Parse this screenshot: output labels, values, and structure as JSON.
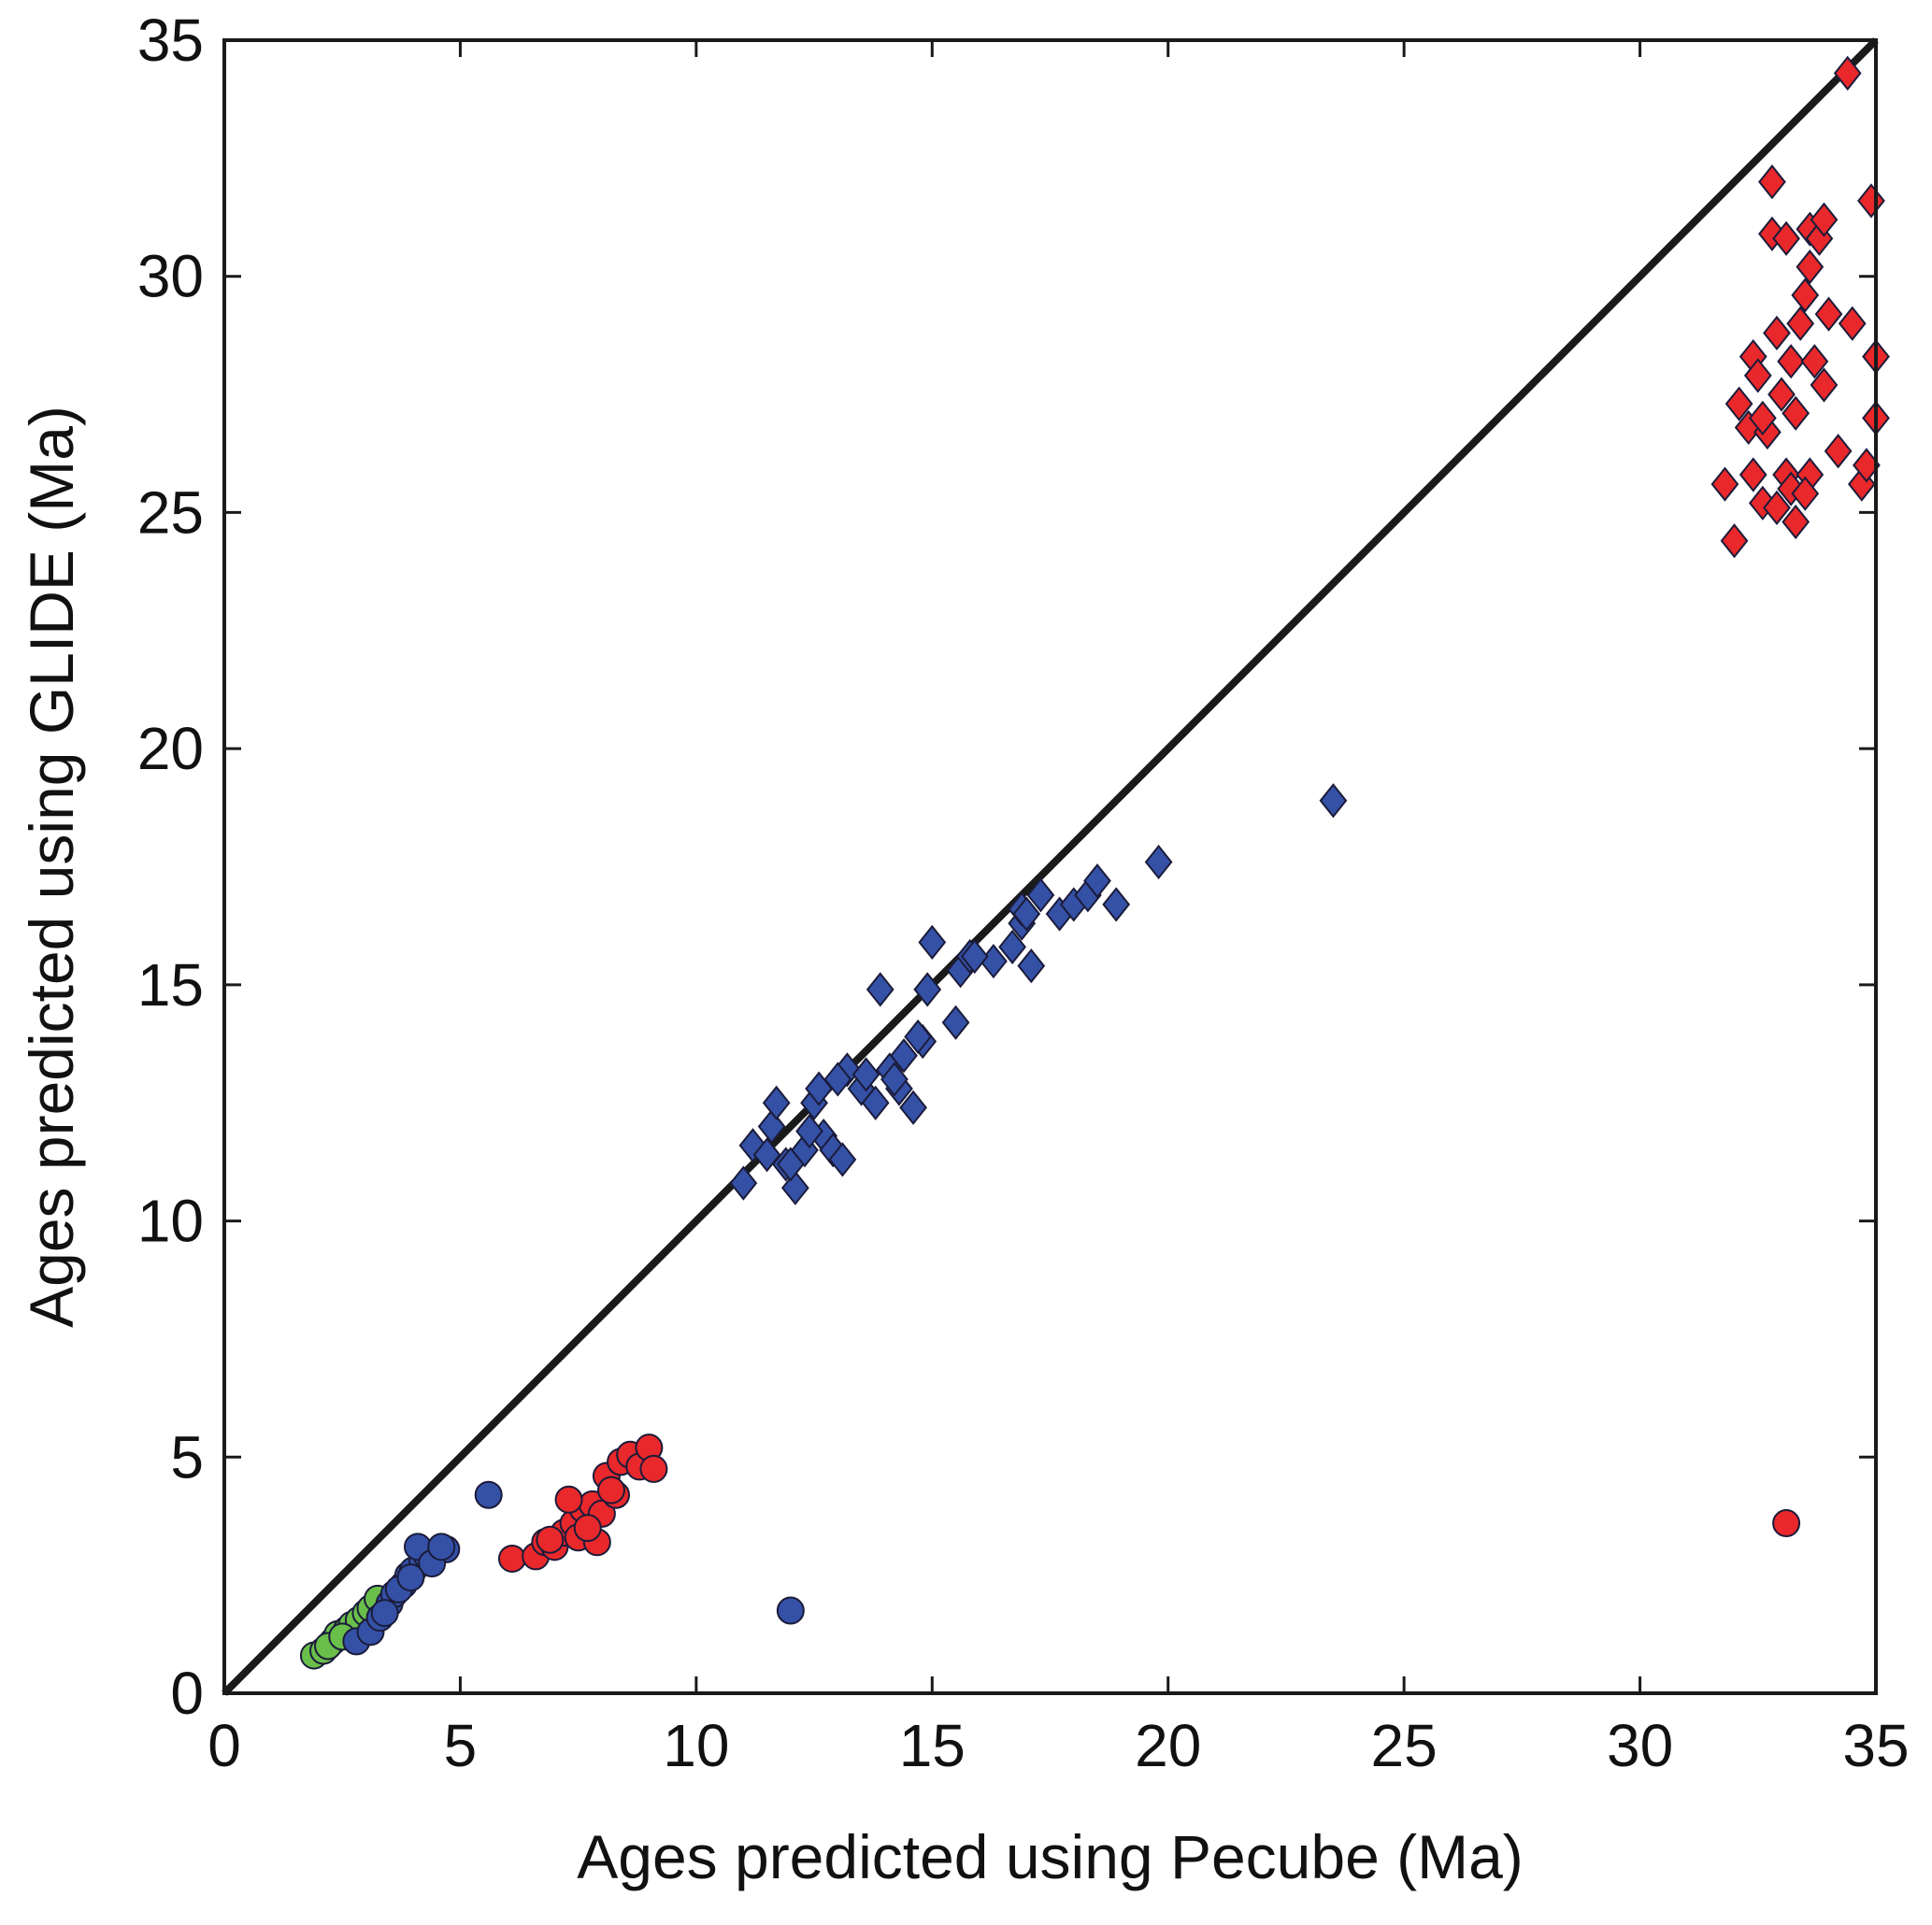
{
  "chart_data": {
    "type": "scatter",
    "title": "",
    "xlabel": "Ages predicted using Pecube (Ma)",
    "ylabel": "Ages predicted using GLIDE (Ma)",
    "xlim": [
      0,
      35
    ],
    "ylim": [
      0,
      35
    ],
    "xticks": [
      0,
      5,
      10,
      15,
      20,
      25,
      30,
      35
    ],
    "yticks": [
      0,
      5,
      10,
      15,
      20,
      25,
      30,
      35
    ],
    "grid": false,
    "legend": "none",
    "reference_line": {
      "x": [
        0,
        35
      ],
      "y": [
        0,
        35
      ],
      "color": "#1a1a1a"
    },
    "series": [
      {
        "marker": "circle",
        "color": "#6abf4b",
        "points": [
          [
            1.9,
            0.8
          ],
          [
            2.1,
            0.9
          ],
          [
            2.3,
            1.1
          ],
          [
            2.4,
            1.25
          ],
          [
            2.6,
            1.35
          ],
          [
            2.7,
            1.45
          ],
          [
            2.85,
            1.55
          ],
          [
            3.0,
            1.7
          ],
          [
            3.1,
            1.8
          ],
          [
            3.25,
            2.0
          ],
          [
            2.2,
            1.0
          ],
          [
            2.5,
            1.2
          ]
        ]
      },
      {
        "marker": "circle",
        "color": "#3451a6",
        "points": [
          [
            2.8,
            1.1
          ],
          [
            3.1,
            1.3
          ],
          [
            3.3,
            1.6
          ],
          [
            3.5,
            1.9
          ],
          [
            3.6,
            2.1
          ],
          [
            3.8,
            2.3
          ],
          [
            3.9,
            2.5
          ],
          [
            4.0,
            2.6
          ],
          [
            4.2,
            2.8
          ],
          [
            4.3,
            2.9
          ],
          [
            4.5,
            3.0
          ],
          [
            4.7,
            3.05
          ],
          [
            4.1,
            3.1
          ],
          [
            3.7,
            2.2
          ],
          [
            3.4,
            1.7
          ],
          [
            4.4,
            2.75
          ],
          [
            4.6,
            3.1
          ],
          [
            3.95,
            2.45
          ],
          [
            5.6,
            4.2
          ],
          [
            12.0,
            1.75
          ]
        ]
      },
      {
        "marker": "circle",
        "color": "#e8282a",
        "points": [
          [
            6.1,
            2.85
          ],
          [
            6.6,
            2.9
          ],
          [
            6.8,
            3.2
          ],
          [
            7.0,
            3.1
          ],
          [
            7.2,
            3.4
          ],
          [
            7.4,
            3.6
          ],
          [
            7.5,
            3.3
          ],
          [
            7.6,
            3.9
          ],
          [
            7.8,
            4.0
          ],
          [
            7.9,
            3.2
          ],
          [
            8.0,
            3.8
          ],
          [
            8.1,
            4.6
          ],
          [
            8.3,
            4.2
          ],
          [
            8.4,
            4.9
          ],
          [
            8.6,
            5.05
          ],
          [
            8.8,
            4.8
          ],
          [
            9.0,
            5.2
          ],
          [
            9.1,
            4.75
          ],
          [
            7.3,
            4.1
          ],
          [
            6.9,
            3.25
          ],
          [
            7.7,
            3.5
          ],
          [
            8.2,
            4.3
          ],
          [
            33.1,
            3.6
          ]
        ]
      },
      {
        "marker": "diamond",
        "color": "#3451a6",
        "points": [
          [
            11.0,
            10.8
          ],
          [
            11.2,
            11.6
          ],
          [
            11.5,
            11.4
          ],
          [
            11.6,
            12.0
          ],
          [
            11.7,
            12.5
          ],
          [
            11.9,
            11.2
          ],
          [
            12.1,
            10.7
          ],
          [
            12.3,
            11.5
          ],
          [
            12.5,
            12.5
          ],
          [
            12.6,
            12.8
          ],
          [
            12.7,
            11.8
          ],
          [
            12.9,
            11.5
          ],
          [
            13.1,
            11.3
          ],
          [
            13.2,
            13.2
          ],
          [
            13.5,
            12.8
          ],
          [
            13.8,
            12.5
          ],
          [
            13.9,
            14.9
          ],
          [
            14.1,
            13.2
          ],
          [
            14.3,
            12.8
          ],
          [
            14.4,
            13.5
          ],
          [
            14.6,
            12.4
          ],
          [
            14.8,
            13.8
          ],
          [
            14.9,
            14.9
          ],
          [
            15.0,
            15.9
          ],
          [
            15.5,
            14.2
          ],
          [
            15.6,
            15.3
          ],
          [
            15.8,
            15.6
          ],
          [
            16.3,
            15.5
          ],
          [
            16.7,
            15.8
          ],
          [
            16.9,
            16.3
          ],
          [
            17.1,
            15.4
          ],
          [
            17.3,
            16.9
          ],
          [
            17.7,
            16.5
          ],
          [
            18.0,
            16.7
          ],
          [
            18.3,
            16.9
          ],
          [
            18.5,
            17.2
          ],
          [
            18.9,
            16.7
          ],
          [
            19.8,
            17.6
          ],
          [
            23.5,
            18.9
          ],
          [
            13.0,
            13.0
          ],
          [
            12.0,
            11.2
          ],
          [
            14.2,
            13.0
          ],
          [
            15.9,
            15.6
          ],
          [
            16.9,
            16.6
          ],
          [
            12.4,
            11.9
          ],
          [
            13.6,
            13.1
          ],
          [
            14.7,
            13.9
          ],
          [
            17.0,
            16.5
          ]
        ]
      },
      {
        "marker": "diamond",
        "color": "#e8282a",
        "points": [
          [
            31.8,
            25.6
          ],
          [
            32.0,
            24.4
          ],
          [
            32.1,
            27.3
          ],
          [
            32.3,
            26.8
          ],
          [
            32.4,
            28.3
          ],
          [
            32.5,
            27.9
          ],
          [
            32.6,
            25.2
          ],
          [
            32.7,
            26.7
          ],
          [
            32.8,
            30.9
          ],
          [
            32.8,
            32.0
          ],
          [
            32.9,
            28.8
          ],
          [
            33.0,
            27.5
          ],
          [
            33.1,
            25.8
          ],
          [
            33.1,
            30.8
          ],
          [
            33.2,
            28.2
          ],
          [
            33.3,
            24.8
          ],
          [
            33.4,
            29.0
          ],
          [
            33.5,
            29.6
          ],
          [
            33.6,
            31.0
          ],
          [
            33.6,
            25.8
          ],
          [
            33.7,
            28.2
          ],
          [
            33.8,
            30.8
          ],
          [
            33.9,
            31.2
          ],
          [
            33.9,
            27.7
          ],
          [
            34.0,
            29.2
          ],
          [
            34.2,
            26.3
          ],
          [
            34.4,
            34.3
          ],
          [
            34.5,
            29.0
          ],
          [
            34.7,
            25.6
          ],
          [
            34.8,
            26.0
          ],
          [
            34.9,
            31.6
          ],
          [
            35.0,
            28.3
          ],
          [
            35.0,
            27.0
          ],
          [
            32.4,
            25.8
          ],
          [
            32.9,
            25.1
          ],
          [
            33.3,
            27.1
          ],
          [
            33.6,
            30.2
          ],
          [
            33.2,
            25.5
          ],
          [
            32.6,
            27.0
          ],
          [
            33.5,
            25.4
          ]
        ]
      }
    ]
  }
}
